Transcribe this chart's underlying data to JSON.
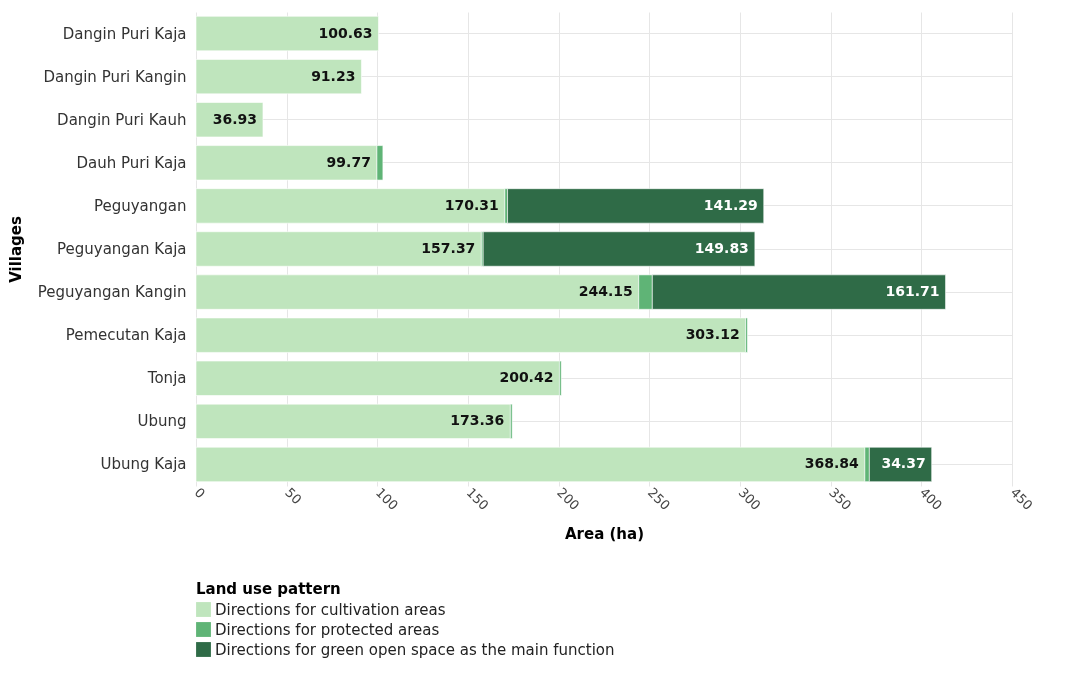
{
  "chart_data": {
    "type": "bar",
    "orientation": "horizontal",
    "stacked": true,
    "xlabel": "Area (ha)",
    "ylabel": "Villages",
    "legend_title": "Land use pattern",
    "legend": "bottom left",
    "grid": true,
    "categories": [
      "Dangin Puri Kaja",
      "Dangin Puri Kangin",
      "Dangin Puri Kauh",
      "Dauh Puri Kaja",
      "Peguyangan",
      "Peguyangan Kaja",
      "Peguyangan Kangin",
      "Pemecutan Kaja",
      "Tonja",
      "Ubung",
      "Ubung Kaja"
    ],
    "xlim": [
      0,
      450
    ],
    "xticks": [
      0,
      50,
      100,
      150,
      200,
      250,
      300,
      350,
      400,
      450
    ],
    "series": [
      {
        "name": "Directions for cultivation areas",
        "color": "#bfe5bd",
        "values": [
          100.63,
          91.23,
          36.93,
          99.77,
          170.31,
          157.37,
          244.15,
          303.12,
          200.42,
          173.36,
          368.84
        ],
        "value_labels": [
          "100.63",
          "91.23",
          "36.93",
          "99.77",
          "170.31",
          "157.37",
          "244.15",
          "303.12",
          "200.42",
          "173.36",
          "368.84"
        ]
      },
      {
        "name": "Directions for protected areas",
        "color": "#5fb476",
        "values": [
          null,
          null,
          null,
          3.3,
          1.5,
          1,
          7.5,
          1,
          1,
          1,
          2.5
        ]
      },
      {
        "name": "Directions for green open space as the main function",
        "color": "#2f6b47",
        "values": [
          null,
          null,
          null,
          null,
          141.29,
          149.83,
          161.71,
          null,
          null,
          null,
          34.37
        ],
        "value_labels": [
          null,
          null,
          null,
          null,
          "141.29",
          "149.83",
          "161.71",
          null,
          null,
          null,
          "34.37"
        ]
      }
    ]
  }
}
